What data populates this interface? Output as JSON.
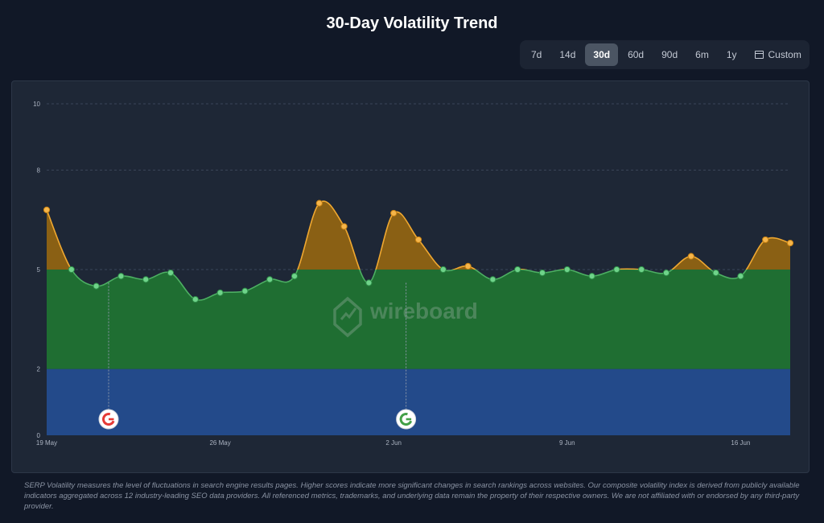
{
  "header": {
    "title": "30-Day Volatility Trend"
  },
  "ranges": {
    "items": [
      {
        "label": "7d",
        "name": "range-7d"
      },
      {
        "label": "14d",
        "name": "range-14d"
      },
      {
        "label": "30d",
        "name": "range-30d",
        "active": true
      },
      {
        "label": "60d",
        "name": "range-60d"
      },
      {
        "label": "90d",
        "name": "range-90d"
      },
      {
        "label": "6m",
        "name": "range-6m"
      },
      {
        "label": "1y",
        "name": "range-1y"
      },
      {
        "label": "Custom",
        "name": "range-custom",
        "icon": "calendar-icon"
      }
    ]
  },
  "watermark": {
    "text": "wireboard"
  },
  "chart_data": {
    "type": "area",
    "ylim": [
      0,
      10
    ],
    "yticks": [
      0,
      2,
      5,
      8,
      10
    ],
    "x_ticks": [
      {
        "label": "19 May",
        "day": 0
      },
      {
        "label": "26 May",
        "day": 7
      },
      {
        "label": "2 Jun",
        "day": 14
      },
      {
        "label": "9 Jun",
        "day": 21
      },
      {
        "label": "16 Jun",
        "day": 28
      }
    ],
    "bands": [
      {
        "from": 0,
        "to": 2,
        "color": "#234a8a"
      },
      {
        "from": 2,
        "to": 5,
        "color": "#1f6e32"
      },
      {
        "from": 5,
        "to": 10,
        "color": "#8a6014"
      }
    ],
    "values": [
      6.8,
      5.0,
      4.5,
      4.8,
      4.7,
      4.9,
      4.1,
      4.3,
      4.35,
      4.7,
      4.8,
      7.0,
      6.3,
      4.6,
      6.7,
      5.9,
      5.0,
      5.1,
      4.7,
      5.0,
      4.9,
      5.0,
      4.8,
      5.0,
      5.0,
      4.9,
      5.4,
      4.9,
      4.8,
      5.9,
      5.8
    ],
    "line_color": "#f0a830",
    "high_point_color": "#f5b54a",
    "low_point_color": "#6fd38a",
    "threshold": 5,
    "annotations": [
      {
        "day": 2.5,
        "type": "google-update",
        "status": "negative",
        "color": "#e53935"
      },
      {
        "day": 14.5,
        "type": "google-update",
        "status": "positive",
        "color": "#43a047"
      }
    ]
  },
  "footnote": {
    "text": "SERP Volatility measures the level of fluctuations in search engine results pages. Higher scores indicate more significant changes in search rankings across websites. Our composite volatility index is derived from publicly available indicators aggregated across 12 industry-leading SEO data providers. All referenced metrics, trademarks, and underlying data remain the property of their respective owners. We are not affiliated with or endorsed by any third-party provider."
  }
}
